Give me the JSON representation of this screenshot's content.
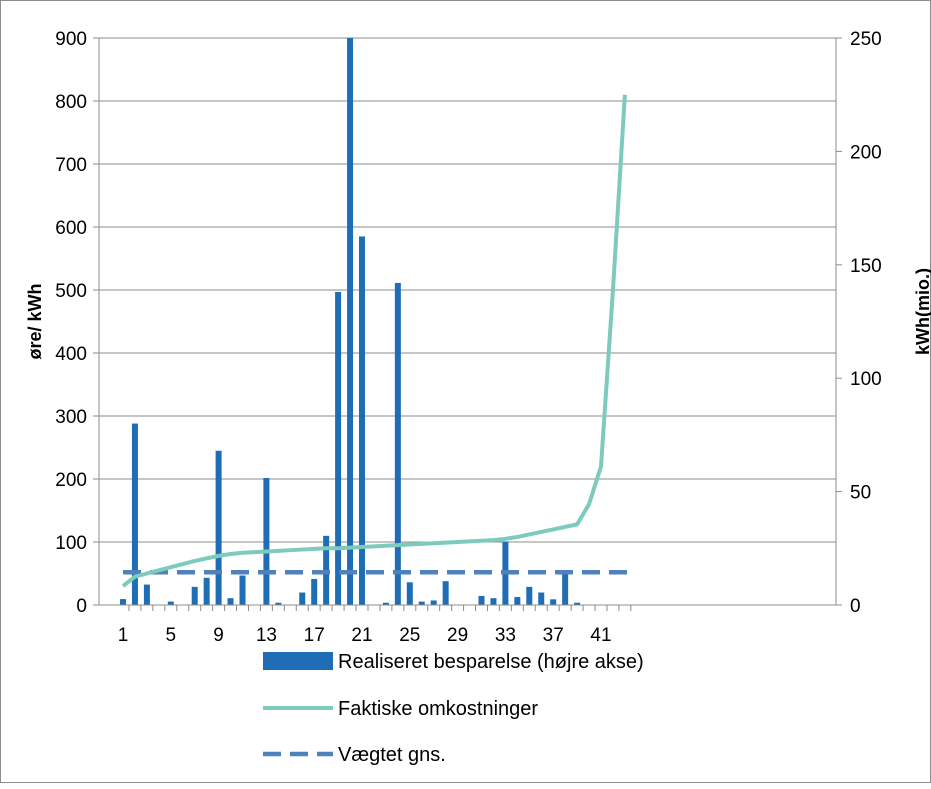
{
  "chart_data": {
    "type": "bar",
    "title": "",
    "ylabel_left": "øre/ kWh",
    "ylabel_right": "kWh(mio.)",
    "x_ticks": [
      "1",
      "5",
      "9",
      "13",
      "17",
      "21",
      "25",
      "29",
      "33",
      "37",
      "41"
    ],
    "y_left_ticks": [
      "0",
      "100",
      "200",
      "300",
      "400",
      "500",
      "600",
      "700",
      "800",
      "900"
    ],
    "y_right_ticks": [
      "0",
      "50",
      "100",
      "150",
      "200",
      "250"
    ],
    "ylim_left": [
      0,
      900
    ],
    "ylim_right": [
      0,
      250
    ],
    "categories": [
      1,
      2,
      3,
      4,
      5,
      6,
      7,
      8,
      9,
      10,
      11,
      12,
      13,
      14,
      15,
      16,
      17,
      18,
      19,
      20,
      21,
      22,
      23,
      24,
      25,
      26,
      27,
      28,
      29,
      30,
      31,
      32,
      33,
      34,
      35,
      36,
      37,
      38,
      39,
      40,
      41,
      42,
      43
    ],
    "series": [
      {
        "name": "Realiseret besparelse (højre akse)",
        "kind": "bar",
        "color": "#1f6db5",
        "values": [
          2.6,
          80,
          9,
          0,
          1.5,
          0,
          8,
          12,
          68,
          3,
          13,
          0,
          56,
          1,
          0,
          5.5,
          11.5,
          30.5,
          138,
          250,
          162.5,
          0,
          1,
          142,
          10,
          1.5,
          2,
          10.5,
          0,
          0,
          4,
          3,
          28,
          3.5,
          8,
          5.5,
          2.5,
          14,
          1,
          0,
          0,
          0,
          0
        ]
      },
      {
        "name": "Faktiske omkostninger",
        "kind": "line",
        "color": "#7ccbbd",
        "values": [
          30,
          45,
          50,
          55,
          60,
          65,
          70,
          74,
          78,
          81,
          83,
          84,
          85,
          86,
          87,
          88,
          89,
          90,
          90,
          91,
          92,
          93,
          94,
          95,
          96,
          97,
          98,
          99,
          100,
          101,
          102,
          103,
          105,
          108,
          112,
          116,
          120,
          124,
          128,
          160,
          220,
          500,
          810
        ]
      },
      {
        "name": "Vægtet gns.",
        "kind": "dashed-line",
        "color": "#4f81bd",
        "value": 52
      }
    ],
    "grid": true,
    "legend_position": "bottom"
  }
}
